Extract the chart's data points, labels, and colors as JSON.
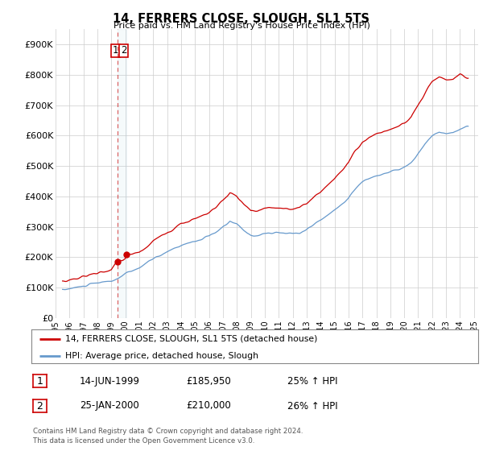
{
  "title": "14, FERRERS CLOSE, SLOUGH, SL1 5TS",
  "subtitle": "Price paid vs. HM Land Registry's House Price Index (HPI)",
  "ylabel_ticks": [
    "£0",
    "£100K",
    "£200K",
    "£300K",
    "£400K",
    "£500K",
    "£600K",
    "£700K",
    "£800K",
    "£900K"
  ],
  "ytick_vals": [
    0,
    100000,
    200000,
    300000,
    400000,
    500000,
    600000,
    700000,
    800000,
    900000
  ],
  "ylim": [
    0,
    950000
  ],
  "xlim_start": 1995.3,
  "xlim_end": 2025.3,
  "xtick_years": [
    1995,
    1996,
    1997,
    1998,
    1999,
    2000,
    2001,
    2002,
    2003,
    2004,
    2005,
    2006,
    2007,
    2008,
    2009,
    2010,
    2011,
    2012,
    2013,
    2014,
    2015,
    2016,
    2017,
    2018,
    2019,
    2020,
    2021,
    2022,
    2023,
    2024,
    2025
  ],
  "red_line_color": "#cc0000",
  "blue_line_color": "#6699cc",
  "sale1_x": 1999.45,
  "sale1_y": 185950,
  "sale2_x": 2000.07,
  "sale2_y": 210000,
  "marker_color": "#cc0000",
  "dashed_line_x": 1999.45,
  "legend_label_red": "14, FERRERS CLOSE, SLOUGH, SL1 5TS (detached house)",
  "legend_label_blue": "HPI: Average price, detached house, Slough",
  "table_rows": [
    [
      "1",
      "14-JUN-1999",
      "£185,950",
      "25% ↑ HPI"
    ],
    [
      "2",
      "25-JAN-2000",
      "£210,000",
      "26% ↑ HPI"
    ]
  ],
  "footnote": "Contains HM Land Registry data © Crown copyright and database right 2024.\nThis data is licensed under the Open Government Licence v3.0.",
  "background_color": "#ffffff",
  "grid_color": "#cccccc"
}
